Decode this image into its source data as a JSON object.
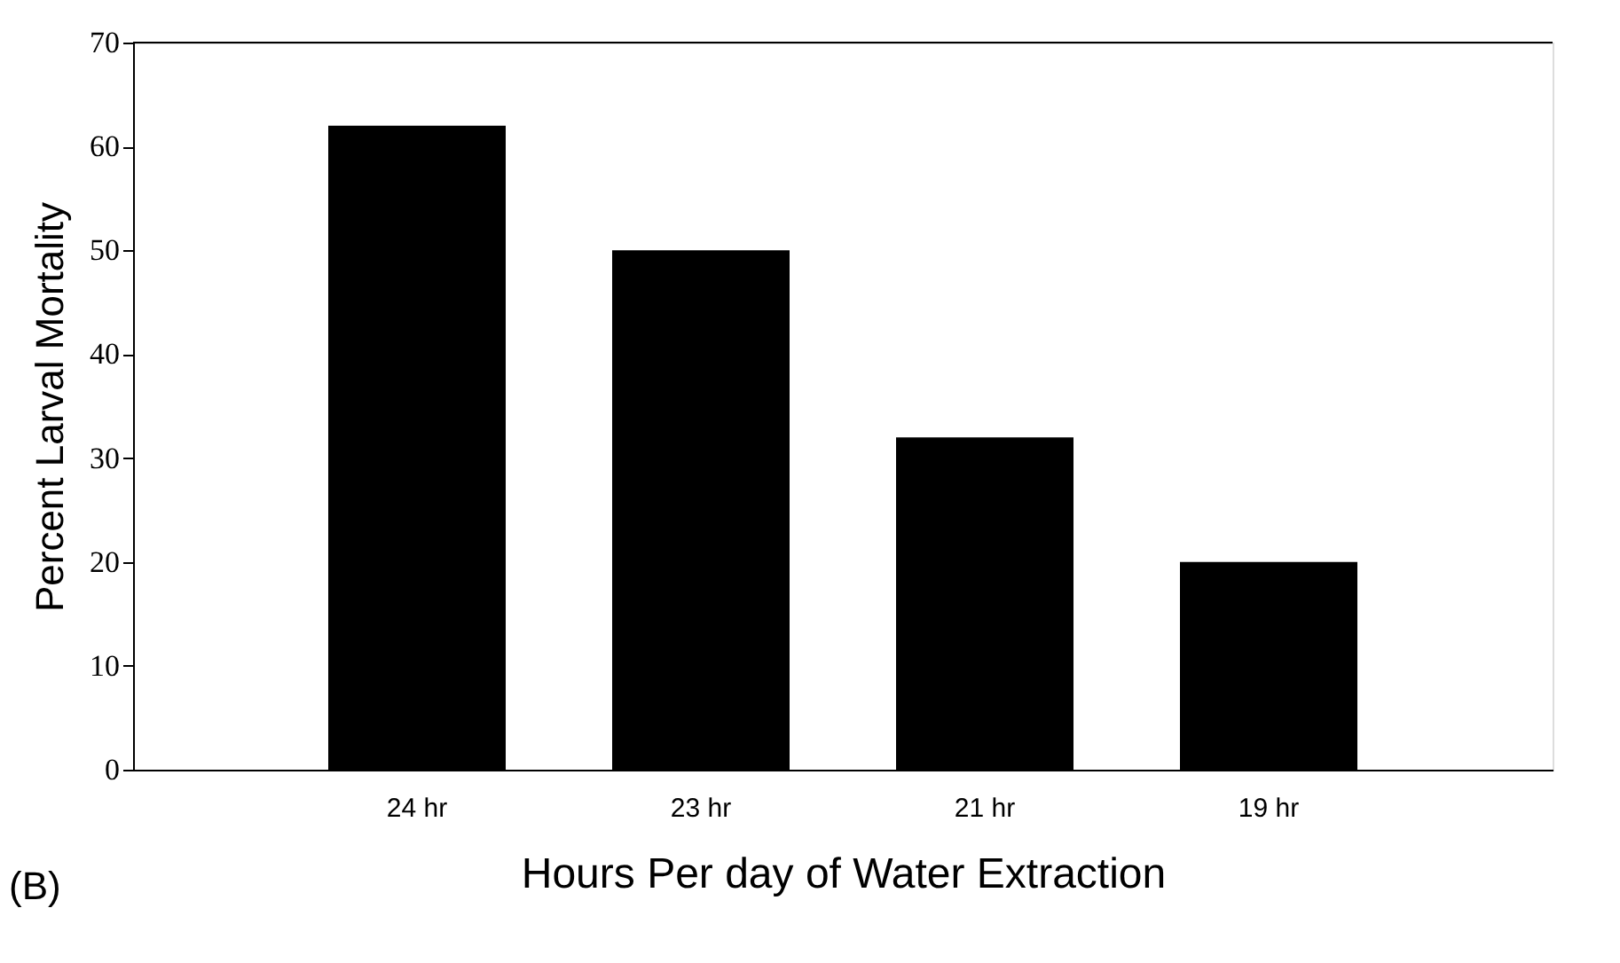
{
  "chart_data": {
    "type": "bar",
    "xlabel": "Hours Per day of Water Extraction",
    "ylabel": "Percent Larval Mortality",
    "categories": [
      "24 hr",
      "23 hr",
      "21 hr",
      "19 hr"
    ],
    "values": [
      62,
      50,
      32,
      20
    ],
    "color": "#000000",
    "ylim": [
      0,
      70
    ],
    "yticks": [
      0,
      10,
      20,
      30,
      40,
      50,
      60,
      70
    ],
    "grid": false,
    "annotations": [
      "(B)"
    ]
  }
}
